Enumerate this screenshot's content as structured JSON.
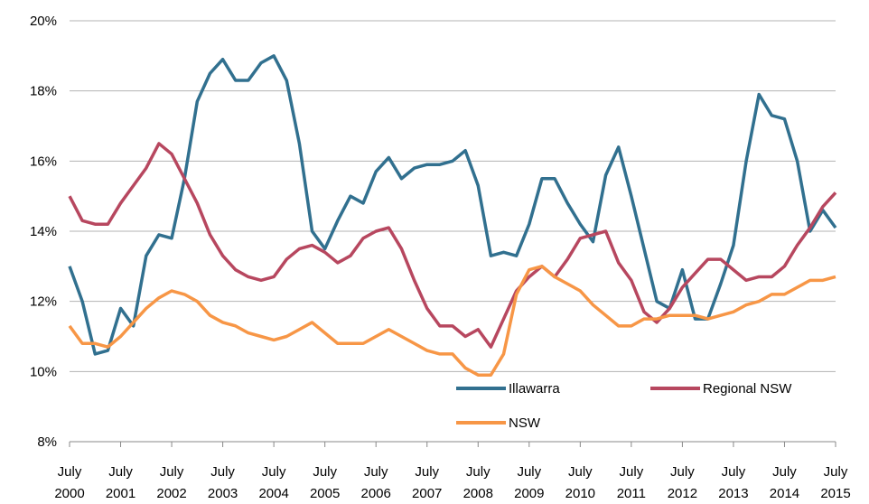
{
  "chart_data": {
    "type": "line",
    "x": [
      "2000-07",
      "2000-10",
      "2001-01",
      "2001-04",
      "2001-07",
      "2001-10",
      "2002-01",
      "2002-04",
      "2002-07",
      "2002-10",
      "2003-01",
      "2003-04",
      "2003-07",
      "2003-10",
      "2004-01",
      "2004-04",
      "2004-07",
      "2004-10",
      "2005-01",
      "2005-04",
      "2005-07",
      "2005-10",
      "2006-01",
      "2006-04",
      "2006-07",
      "2006-10",
      "2007-01",
      "2007-04",
      "2007-07",
      "2007-10",
      "2008-01",
      "2008-04",
      "2008-07",
      "2008-10",
      "2009-01",
      "2009-04",
      "2009-07",
      "2009-10",
      "2010-01",
      "2010-04",
      "2010-07",
      "2010-10",
      "2011-01",
      "2011-04",
      "2011-07",
      "2011-10",
      "2012-01",
      "2012-04",
      "2012-07",
      "2012-10",
      "2013-01",
      "2013-04",
      "2013-07",
      "2013-10",
      "2014-01",
      "2014-04",
      "2014-07",
      "2014-10",
      "2015-01",
      "2015-04",
      "2015-07"
    ],
    "series": [
      {
        "name": "Illawarra",
        "color": "#31708f",
        "values": [
          13.0,
          12.0,
          10.5,
          10.6,
          11.8,
          11.3,
          13.3,
          13.9,
          13.8,
          15.5,
          17.7,
          18.5,
          18.9,
          18.3,
          18.3,
          18.8,
          19.0,
          18.3,
          16.5,
          14.0,
          13.5,
          14.3,
          15.0,
          14.8,
          15.7,
          16.1,
          15.5,
          15.8,
          15.9,
          15.9,
          16.0,
          16.3,
          15.3,
          13.3,
          13.4,
          13.3,
          14.2,
          15.5,
          15.5,
          14.8,
          14.2,
          13.7,
          15.6,
          16.4,
          15.0,
          13.5,
          12.0,
          11.8,
          12.9,
          11.5,
          11.5,
          12.5,
          13.6,
          16.0,
          17.9,
          17.3,
          17.2,
          16.0,
          14.0,
          14.6,
          14.1
        ]
      },
      {
        "name": "Regional NSW",
        "color": "#b7475f",
        "values": [
          15.0,
          14.3,
          14.2,
          14.2,
          14.8,
          15.3,
          15.8,
          16.5,
          16.2,
          15.5,
          14.8,
          13.9,
          13.3,
          12.9,
          12.7,
          12.6,
          12.7,
          13.2,
          13.5,
          13.6,
          13.4,
          13.1,
          13.3,
          13.8,
          14.0,
          14.1,
          13.5,
          12.6,
          11.8,
          11.3,
          11.3,
          11.0,
          11.2,
          10.7,
          11.5,
          12.3,
          12.7,
          13.0,
          12.7,
          13.2,
          13.8,
          13.9,
          14.0,
          13.1,
          12.6,
          11.7,
          11.4,
          11.8,
          12.4,
          12.8,
          13.2,
          13.2,
          12.9,
          12.6,
          12.7,
          12.7,
          13.0,
          13.6,
          14.1,
          14.7,
          15.1
        ]
      },
      {
        "name": "NSW",
        "color": "#f79646",
        "values": [
          11.3,
          10.8,
          10.8,
          10.7,
          11.0,
          11.4,
          11.8,
          12.1,
          12.3,
          12.2,
          12.0,
          11.6,
          11.4,
          11.3,
          11.1,
          11.0,
          10.9,
          11.0,
          11.2,
          11.4,
          11.1,
          10.8,
          10.8,
          10.8,
          11.0,
          11.2,
          11.0,
          10.8,
          10.6,
          10.5,
          10.5,
          10.1,
          9.9,
          9.9,
          10.5,
          12.2,
          12.9,
          13.0,
          12.7,
          12.5,
          12.3,
          11.9,
          11.6,
          11.3,
          11.3,
          11.5,
          11.5,
          11.6,
          11.6,
          11.6,
          11.5,
          11.6,
          11.7,
          11.9,
          12.0,
          12.2,
          12.2,
          12.4,
          12.6,
          12.6,
          12.7
        ]
      }
    ],
    "ylim": [
      8,
      20
    ],
    "yticks": [
      {
        "value": 8,
        "label": "8%"
      },
      {
        "value": 10,
        "label": "10%"
      },
      {
        "value": 12,
        "label": "12%"
      },
      {
        "value": 14,
        "label": "14%"
      },
      {
        "value": 16,
        "label": "16%"
      },
      {
        "value": 18,
        "label": "18%"
      },
      {
        "value": 20,
        "label": "20%"
      }
    ],
    "xticks": [
      {
        "value": "2000-07",
        "label": "July 2000"
      },
      {
        "value": "2001-07",
        "label": "July 2001"
      },
      {
        "value": "2002-07",
        "label": "July 2002"
      },
      {
        "value": "2003-07",
        "label": "July 2003"
      },
      {
        "value": "2004-07",
        "label": "July 2004"
      },
      {
        "value": "2005-07",
        "label": "July 2005"
      },
      {
        "value": "2006-07",
        "label": "July 2006"
      },
      {
        "value": "2007-07",
        "label": "July 2007"
      },
      {
        "value": "2008-07",
        "label": "July 2008"
      },
      {
        "value": "2009-07",
        "label": "July 2009"
      },
      {
        "value": "2010-07",
        "label": "July 2010"
      },
      {
        "value": "2011-07",
        "label": "July 2011"
      },
      {
        "value": "2012-07",
        "label": "July 2012"
      },
      {
        "value": "2013-07",
        "label": "July 2013"
      },
      {
        "value": "2014-07",
        "label": "July 2014"
      },
      {
        "value": "2015-07",
        "label": "July 2015"
      }
    ],
    "grid": true,
    "legend": "lower right"
  }
}
